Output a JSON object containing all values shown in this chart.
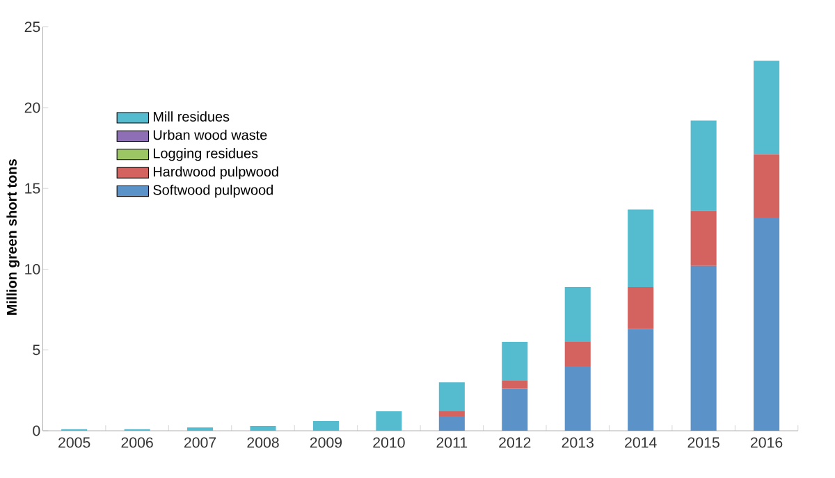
{
  "chart_data": {
    "type": "bar",
    "stacked": true,
    "ylabel": "Million green short tons",
    "categories": [
      "2005",
      "2006",
      "2007",
      "2008",
      "2009",
      "2010",
      "2011",
      "2012",
      "2013",
      "2014",
      "2015",
      "2016"
    ],
    "series": [
      {
        "name": "Softwood pulpwood",
        "color": "#5b92c8",
        "values": [
          0,
          0,
          0,
          0,
          0,
          0,
          0.9,
          2.6,
          4.0,
          6.3,
          10.2,
          13.2
        ]
      },
      {
        "name": "Hardwood pulpwood",
        "color": "#d4625e",
        "values": [
          0,
          0,
          0,
          0,
          0,
          0,
          0.3,
          0.5,
          1.5,
          2.6,
          3.4,
          3.9
        ]
      },
      {
        "name": "Logging residues",
        "color": "#9cc563",
        "values": [
          0,
          0,
          0,
          0,
          0,
          0,
          0,
          0,
          0,
          0,
          0,
          0
        ]
      },
      {
        "name": "Urban wood waste",
        "color": "#8e6fb5",
        "values": [
          0,
          0,
          0,
          0,
          0,
          0,
          0,
          0,
          0,
          0,
          0,
          0
        ]
      },
      {
        "name": "Mill residues",
        "color": "#55bcd0",
        "values": [
          0.1,
          0.1,
          0.2,
          0.3,
          0.6,
          1.2,
          1.8,
          2.4,
          3.4,
          4.8,
          5.6,
          5.8
        ]
      }
    ],
    "ylim": [
      0,
      25
    ],
    "yticks": [
      0,
      5,
      10,
      15,
      20,
      25
    ],
    "grid": false,
    "legend": "top left"
  }
}
